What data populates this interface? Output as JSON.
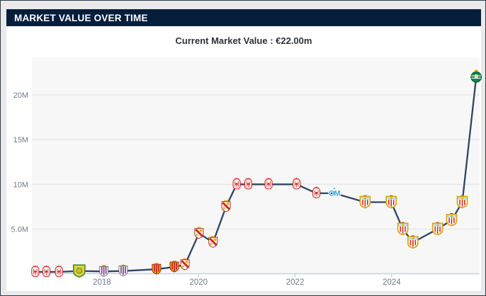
{
  "header": {
    "title": "MARKET VALUE OVER TIME"
  },
  "subtitle": {
    "text": "Current Market Value : €22.00m"
  },
  "colors": {
    "header_bg": "#051e3c",
    "page_bg": "#e9e9e9",
    "card_bg": "#ffffff",
    "plot_bg": "#f7f7f7",
    "grid": "#e0e0e0",
    "axis_line": "#c6d2dd",
    "tick_mark": "#b7c0ca",
    "axis_label": "#6f7a88",
    "line": "#2e4468",
    "subtitle_text": "#2d3238"
  },
  "chart_data": {
    "type": "line",
    "title": "Market value over time",
    "xlabel": "",
    "ylabel": "",
    "grid": true,
    "xlim": [
      2016.55,
      2025.82
    ],
    "ylim": [
      0,
      24.2
    ],
    "y_ticks": [
      {
        "value": 5,
        "label": "5.0M"
      },
      {
        "value": 10,
        "label": "10M"
      },
      {
        "value": 15,
        "label": "15M"
      },
      {
        "value": 20,
        "label": "20M"
      }
    ],
    "x_ticks": [
      {
        "value": 2018,
        "label": "2018"
      },
      {
        "value": 2020,
        "label": "2020"
      },
      {
        "value": 2022,
        "label": "2022"
      },
      {
        "value": 2024,
        "label": "2024"
      }
    ],
    "current_value_m": 22.0,
    "points": [
      {
        "date": 2016.62,
        "value": 0.2,
        "marker": "red_white_crest"
      },
      {
        "date": 2016.85,
        "value": 0.2,
        "marker": "red_white_crest"
      },
      {
        "date": 2017.11,
        "value": 0.2,
        "marker": "red_white_crest"
      },
      {
        "date": 2017.53,
        "value": 0.3,
        "marker": "yellow_green_shield"
      },
      {
        "date": 2018.04,
        "value": 0.25,
        "marker": "purple_white_shield"
      },
      {
        "date": 2018.44,
        "value": 0.3,
        "marker": "purple_white_shield"
      },
      {
        "date": 2019.13,
        "value": 0.5,
        "marker": "red_yellow_shield"
      },
      {
        "date": 2019.5,
        "value": 0.75,
        "marker": "red_yellow_shield"
      },
      {
        "date": 2019.72,
        "value": 1.0,
        "marker": "white_red_crown_shield"
      },
      {
        "date": 2020.01,
        "value": 4.5,
        "marker": "white_red_crown_shield"
      },
      {
        "date": 2020.3,
        "value": 3.5,
        "marker": "white_red_crown_shield"
      },
      {
        "date": 2020.57,
        "value": 7.5,
        "marker": "white_red_crown_shield"
      },
      {
        "date": 2020.79,
        "value": 10.0,
        "marker": "red_white_crest"
      },
      {
        "date": 2021.03,
        "value": 10.0,
        "marker": "red_white_crest"
      },
      {
        "date": 2021.45,
        "value": 10.0,
        "marker": "red_white_crest"
      },
      {
        "date": 2022.03,
        "value": 10.0,
        "marker": "red_white_crest"
      },
      {
        "date": 2022.44,
        "value": 9.0,
        "marker": "red_white_crest"
      },
      {
        "date": 2022.81,
        "value": 9.0,
        "marker": "light_blue_om_crest"
      },
      {
        "date": 2023.45,
        "value": 8.0,
        "marker": "striped_gold_border_shield"
      },
      {
        "date": 2023.99,
        "value": 8.0,
        "marker": "striped_gold_border_shield"
      },
      {
        "date": 2024.23,
        "value": 5.0,
        "marker": "striped_gold_border_shield"
      },
      {
        "date": 2024.44,
        "value": 3.5,
        "marker": "striped_gold_border_shield"
      },
      {
        "date": 2024.95,
        "value": 5.0,
        "marker": "striped_gold_border_shield"
      },
      {
        "date": 2025.24,
        "value": 6.0,
        "marker": "striped_gold_border_shield"
      },
      {
        "date": 2025.46,
        "value": 8.0,
        "marker": "striped_gold_border_shield"
      },
      {
        "date": 2025.75,
        "value": 22.0,
        "marker": "green_gold_roundel"
      }
    ]
  }
}
